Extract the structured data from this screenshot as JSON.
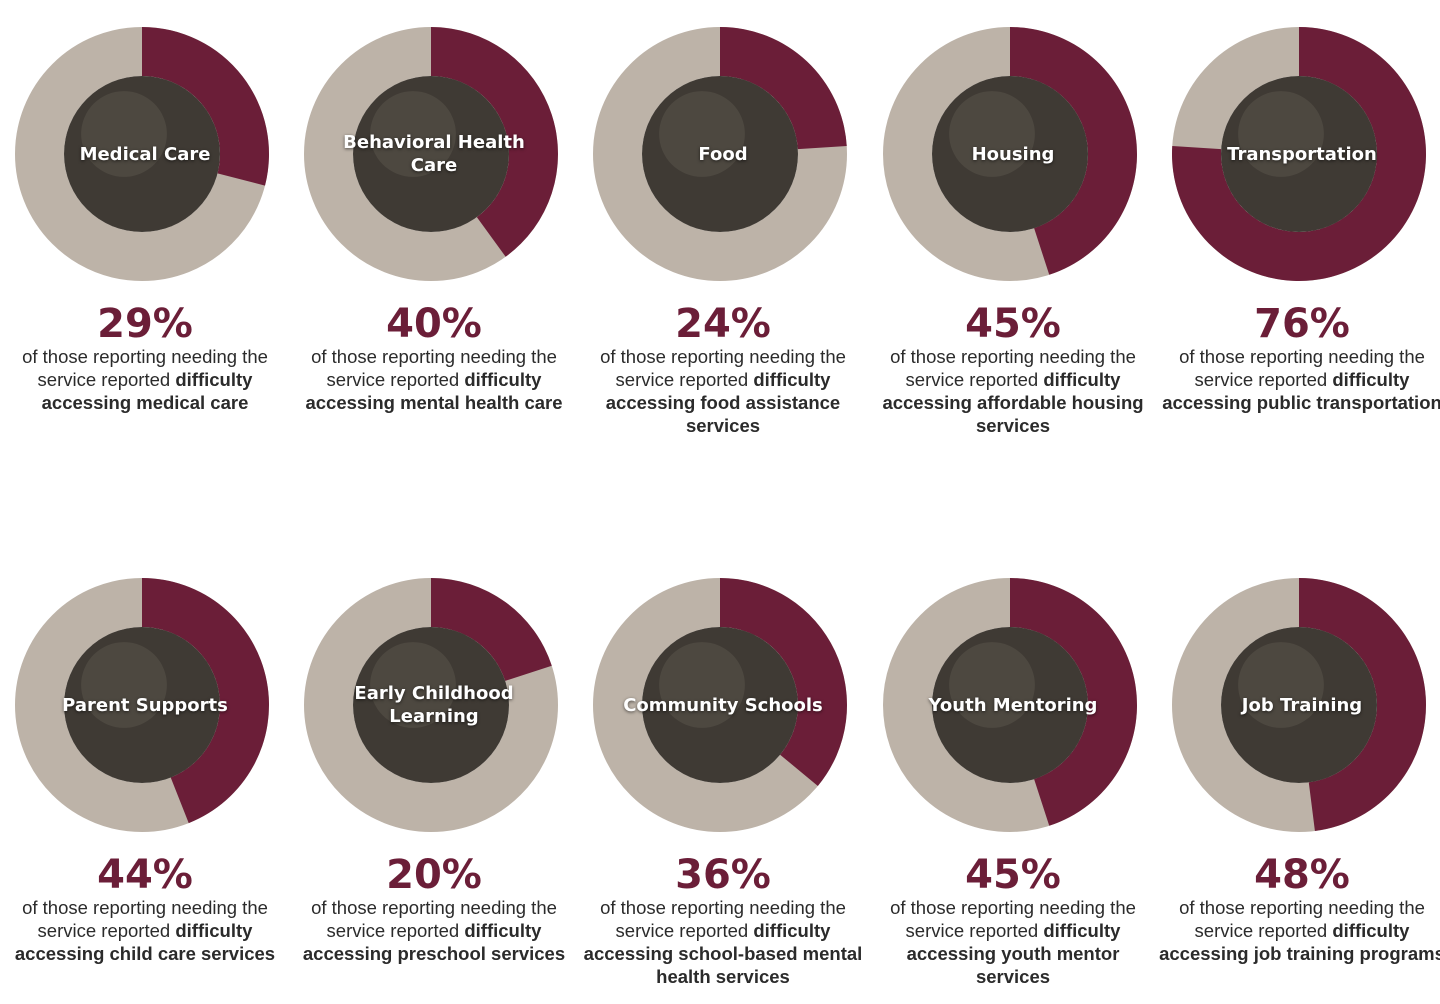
{
  "colors": {
    "accent": "#6b1e38",
    "track": "#bdb3a8",
    "photo": "#3f3a34",
    "text": "#2b2b2b"
  },
  "chart_data": {
    "type": "donut",
    "unit": "%",
    "items": [
      {
        "label": "Medical Care",
        "value": 29,
        "pct": "29%",
        "desc_normal": "of those reporting needing the service reported",
        "desc_bold": "difficulty accessing medical care"
      },
      {
        "label": "Behavioral Health Care",
        "value": 40,
        "pct": "40%",
        "desc_normal": "of those reporting needing the service reported",
        "desc_bold": "difficulty accessing mental health care"
      },
      {
        "label": "Food",
        "value": 24,
        "pct": "24%",
        "desc_normal": "of those reporting needing the service reported",
        "desc_bold": "difficulty accessing food assistance services"
      },
      {
        "label": "Housing",
        "value": 45,
        "pct": "45%",
        "desc_normal": "of those reporting needing the service reported",
        "desc_bold": "difficulty accessing affordable housing services"
      },
      {
        "label": "Transportation",
        "value": 76,
        "pct": "76%",
        "desc_normal": "of those reporting needing the service reported",
        "desc_bold": "difficulty accessing public transportation"
      },
      {
        "label": "Parent Supports",
        "value": 44,
        "pct": "44%",
        "desc_normal": "of those reporting needing the service reported",
        "desc_bold": "difficulty accessing child care services"
      },
      {
        "label": "Early Childhood Learning",
        "value": 20,
        "pct": "20%",
        "desc_normal": "of those reporting needing the service reported",
        "desc_bold": "difficulty accessing preschool services"
      },
      {
        "label": "Community Schools",
        "value": 36,
        "pct": "36%",
        "desc_normal": "of those reporting needing the service reported",
        "desc_bold": "difficulty accessing school-based mental health services"
      },
      {
        "label": "Youth Mentoring",
        "value": 45,
        "pct": "45%",
        "desc_normal": "of those reporting needing the service reported",
        "desc_bold": "difficulty accessing youth mentor services"
      },
      {
        "label": "Job Training",
        "value": 48,
        "pct": "48%",
        "desc_normal": "of those reporting needing the service reported",
        "desc_bold": "difficulty accessing job training programs"
      }
    ]
  }
}
